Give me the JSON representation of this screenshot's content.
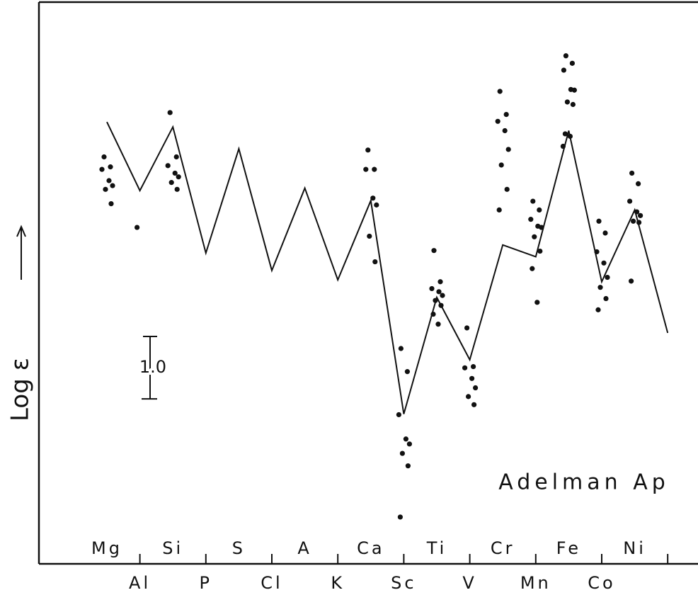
{
  "chart_data": {
    "type": "line",
    "y_label": "Log ε",
    "annotation": "Adelman Ap",
    "scale_bar": {
      "value": 1,
      "label": "1.0"
    },
    "categories": [
      "Mg",
      "Al",
      "Si",
      "P",
      "S",
      "Cl",
      "A",
      "K",
      "Ca",
      "Sc",
      "Ti",
      "V",
      "Cr",
      "Mn",
      "Fe",
      "Co",
      "Ni",
      null
    ],
    "values": [
      7.08,
      5.98,
      7.0,
      4.98,
      6.65,
      4.7,
      6.02,
      4.55,
      5.82,
      2.4,
      4.27,
      3.27,
      5.11,
      4.92,
      6.94,
      4.52,
      5.67,
      3.7
    ],
    "dots": [
      [
        6.52,
        6.36,
        6.32,
        6.14,
        6.06,
        6.0,
        5.77
      ],
      [
        5.39
      ],
      [
        7.23,
        6.52,
        6.38,
        6.26,
        6.2,
        6.11,
        6.0
      ],
      [],
      [],
      [],
      [],
      [],
      [
        6.63,
        6.32,
        6.32,
        5.86,
        5.75,
        5.25,
        4.84
      ],
      [
        3.45,
        3.08,
        2.39,
        2.0,
        1.92,
        1.77,
        1.57,
        0.75
      ],
      [
        5.02,
        4.52,
        4.41,
        4.36,
        4.3,
        4.22,
        4.14,
        4.0,
        3.84
      ],
      [
        3.78,
        3.16,
        3.14,
        2.97,
        2.82,
        2.68,
        2.55
      ],
      [
        7.57,
        7.2,
        7.09,
        6.94,
        6.64,
        6.39,
        6.0,
        5.67
      ],
      [
        5.81,
        5.67,
        5.52,
        5.41,
        5.39,
        5.24,
        5.01,
        4.73,
        4.19
      ],
      [
        8.14,
        8.02,
        7.91,
        7.6,
        7.59,
        7.4,
        7.36,
        6.89,
        6.85,
        6.69
      ],
      [
        5.49,
        5.3,
        5.0,
        4.82,
        4.59,
        4.43,
        4.25,
        4.07
      ],
      [
        6.26,
        6.09,
        5.81,
        5.64,
        5.58,
        5.49,
        5.47,
        4.53
      ],
      []
    ],
    "ylim": [
      0,
      9
    ],
    "color": "#111111"
  }
}
